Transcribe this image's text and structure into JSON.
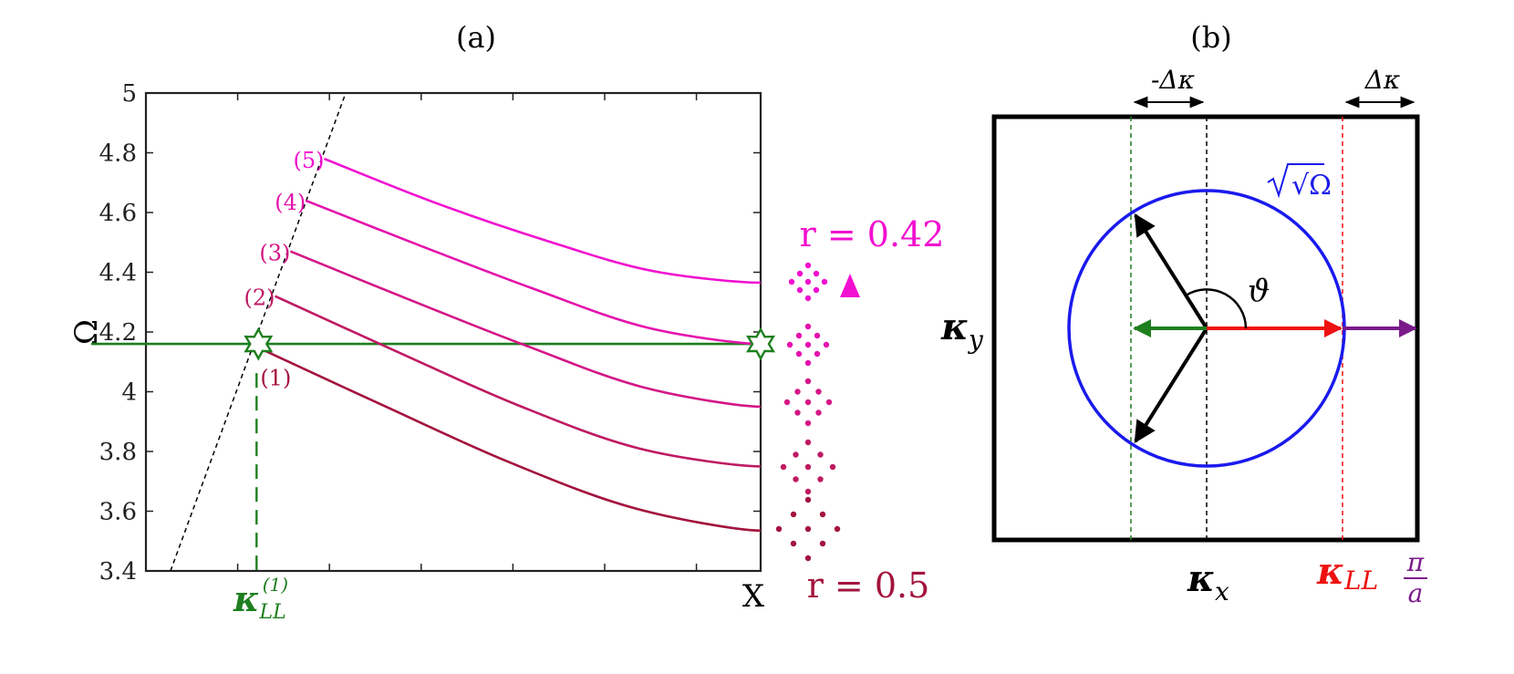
{
  "chart_data": [
    {
      "type": "line",
      "panel_label": "(a)",
      "ylabel": "Ω",
      "xlabel": "X",
      "ylim": [
        3.4,
        5
      ],
      "y_ticks": [
        "3.4",
        "3.6",
        "3.8",
        "4",
        "4.2",
        "4.4",
        "4.6",
        "4.8",
        "5"
      ],
      "x_tick_label": "κ",
      "x_tick_sub": "LL",
      "x_tick_sup": "(1)",
      "x_tick_value": 0.18,
      "xlim": [
        0,
        1
      ],
      "x": [
        0.0,
        0.25,
        0.5,
        0.75,
        1.0
      ],
      "series": [
        {
          "name": "(1)",
          "x_start": 0.18,
          "y_start": 4.15,
          "values": [
            4.15,
            3.955,
            3.765,
            3.61,
            3.535
          ],
          "color": "#a3133e"
        },
        {
          "name": "(2)",
          "x_start": 0.21,
          "y_start": 4.32,
          "values": [
            4.32,
            4.135,
            3.955,
            3.81,
            3.75
          ],
          "color": "#bf1a62"
        },
        {
          "name": "(3)",
          "x_start": 0.235,
          "y_start": 4.47,
          "values": [
            4.47,
            4.31,
            4.155,
            4.015,
            3.95
          ],
          "color": "#d41686"
        },
        {
          "name": "(4)",
          "x_start": 0.26,
          "y_start": 4.64,
          "values": [
            4.64,
            4.49,
            4.345,
            4.215,
            4.16
          ],
          "color": "#e513ad"
        },
        {
          "name": "(5)",
          "x_start": 0.29,
          "y_start": 4.78,
          "values": [
            4.78,
            4.635,
            4.51,
            4.405,
            4.365
          ],
          "color": "#f20fd0"
        }
      ],
      "horizontal_line": {
        "y": 4.16,
        "color": "#1e7f1e"
      },
      "light_line": {
        "x": [
          0.04,
          0.325
        ],
        "y": [
          3.4,
          5.0
        ]
      },
      "lattice_labels": {
        "top": "r = 0.42",
        "bottom": "r = 0.5"
      },
      "colors": {
        "axis": "#222222",
        "green": "#1e7f1e",
        "magenta": "#f20fd0",
        "crimson": "#a3133e"
      }
    },
    {
      "type": "diagram",
      "panel_label": "(b)",
      "circle_label": "√Ω",
      "angle_label": "ϑ",
      "delta_left": "-Δκ",
      "delta_right": "Δκ",
      "axis_x": {
        "label": "κ",
        "sub": "x"
      },
      "axis_y": {
        "label": "κ",
        "sub": "y"
      },
      "kll": {
        "label": "κ",
        "sub": "LL"
      },
      "pi_over_a": {
        "num": "π",
        "den": "a"
      },
      "colors": {
        "circle": "#1a1aee",
        "red": "#ee1111",
        "green": "#1e7f1e",
        "purple": "#7a1a8a",
        "black": "#000000"
      }
    }
  ]
}
